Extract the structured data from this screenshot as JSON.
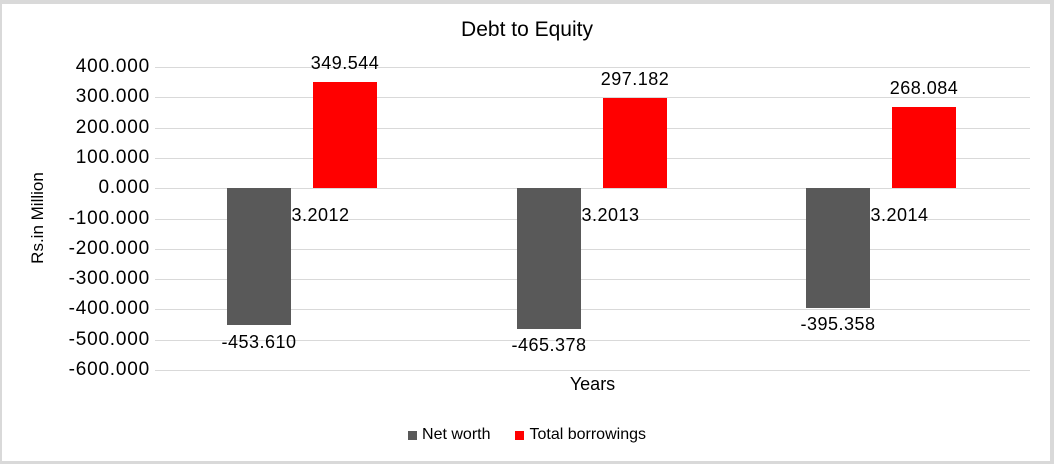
{
  "frame": {
    "background": "#ffffff",
    "border_color": "#d9d9d9"
  },
  "chart_data": {
    "type": "bar",
    "title": "Debt to Equity",
    "xlabel": "Years",
    "ylabel": "Rs.in Million",
    "categories": [
      "31.03.2012",
      "31.03.2013",
      "31.03.2014"
    ],
    "series": [
      {
        "name": "Net worth",
        "color": "#595959",
        "values": [
          -453.61,
          -465.378,
          -395.358
        ],
        "labels": [
          "-453.610",
          "-465.378",
          "-395.358"
        ]
      },
      {
        "name": "Total borrowings",
        "color": "#ff0000",
        "values": [
          349.544,
          297.182,
          268.084
        ],
        "labels": [
          "349.544",
          "297.182",
          "268.084"
        ]
      }
    ],
    "ylim": [
      -600,
      400
    ],
    "ytick_step": 100,
    "ytick_labels": [
      "400.000",
      "300.000",
      "200.000",
      "100.000",
      "0.000",
      "-100.000",
      "-200.000",
      "-300.000",
      "-400.000",
      "-500.000",
      "-600.000"
    ],
    "grid": true,
    "gridline_color": "#d9d9d9",
    "text_color": "#000000",
    "legend_position": "bottom"
  }
}
